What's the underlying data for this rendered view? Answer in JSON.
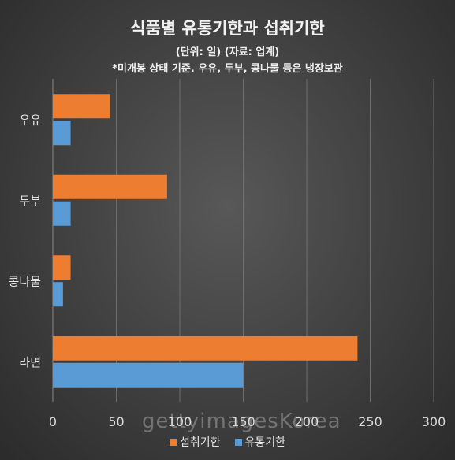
{
  "chart_data": {
    "type": "bar",
    "orientation": "horizontal",
    "title": "식품별 유통기한과 섭취기한",
    "subtitle": "(단위: 일) (자료: 업계)",
    "note": "*미개봉 상태 기준. 우유, 두부, 콩나물 등은 냉장보관",
    "categories": [
      "우유",
      "두부",
      "콩나물",
      "라면"
    ],
    "series": [
      {
        "name": "섭취기한",
        "color": "#ed7d31",
        "values": [
          45,
          90,
          14,
          240
        ]
      },
      {
        "name": "유통기한",
        "color": "#5b9bd5",
        "values": [
          14,
          14,
          8,
          150
        ]
      }
    ],
    "xlim": [
      0,
      300
    ],
    "xticks": [
      0,
      50,
      100,
      150,
      200,
      250,
      300
    ],
    "grid": true,
    "legend_position": "bottom"
  },
  "watermark": "gettyimagesKorea"
}
